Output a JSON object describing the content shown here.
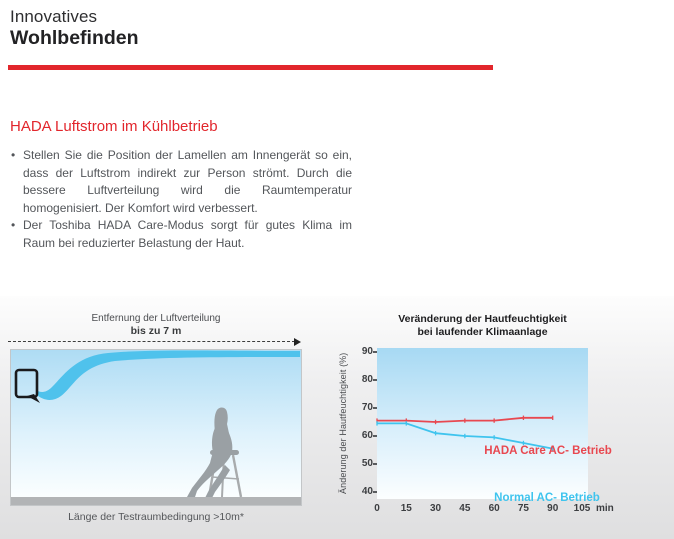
{
  "header": {
    "pretitle": "Innovatives",
    "title": "Wohlbefinden"
  },
  "section": {
    "heading": "HADA Luftstrom im Kühlbetrieb",
    "bullets": [
      "Stellen Sie die Position der Lamellen am Innengerät so ein, dass der Luftstrom indirekt zur Person strömt. Durch die bessere Luftverteilung wird die Raumtemperatur homogenisiert. Der Komfort wird verbessert.",
      "Der Toshiba HADA Care-Modus sorgt für gutes Klima im Raum bei reduzierter Belastung der Haut."
    ]
  },
  "airflow_figure": {
    "distance_label_line1": "Entfernung der Luftverteilung",
    "distance_label_line2": "bis zu 7 m",
    "caption": "Länge der Testraumbedingung >10m*"
  },
  "chart_data": {
    "type": "line",
    "title": "Veränderung der Hautfeuchtigkeit bei laufender Klimaanlage",
    "title_line1": "Veränderung der Hautfeuchtigkeit",
    "title_line2": "bei laufender Klimaanlage",
    "ylabel": "Änderung der Hautfeuchtigkeit (%)",
    "xlabel": "min",
    "x": [
      0,
      15,
      30,
      45,
      60,
      75,
      90
    ],
    "x_ticks": [
      0,
      15,
      30,
      45,
      60,
      75,
      90,
      105
    ],
    "y_ticks": [
      40,
      50,
      60,
      70,
      80,
      90
    ],
    "ylim": [
      40,
      90
    ],
    "xlim": [
      0,
      105
    ],
    "grid": false,
    "legend_position": "inline-labels",
    "series": [
      {
        "name": "HADA Care AC- Betrieb",
        "color": "#e84850",
        "values": [
          65.5,
          65.5,
          65,
          65.5,
          65.5,
          66.5,
          66.5
        ]
      },
      {
        "name": "Normal AC- Betrieb",
        "color": "#3fc4ee",
        "values": [
          64.5,
          64.5,
          61,
          60,
          59.5,
          57.5,
          55.5
        ]
      }
    ]
  },
  "colors": {
    "brand_red": "#e2262c",
    "chart_red": "#e84850",
    "chart_cyan": "#3fc4ee",
    "figure_sky_blue": "#aedcf4",
    "floor_gray": "#b2b4b6",
    "silhouette_gray": "#9aa0a4"
  }
}
